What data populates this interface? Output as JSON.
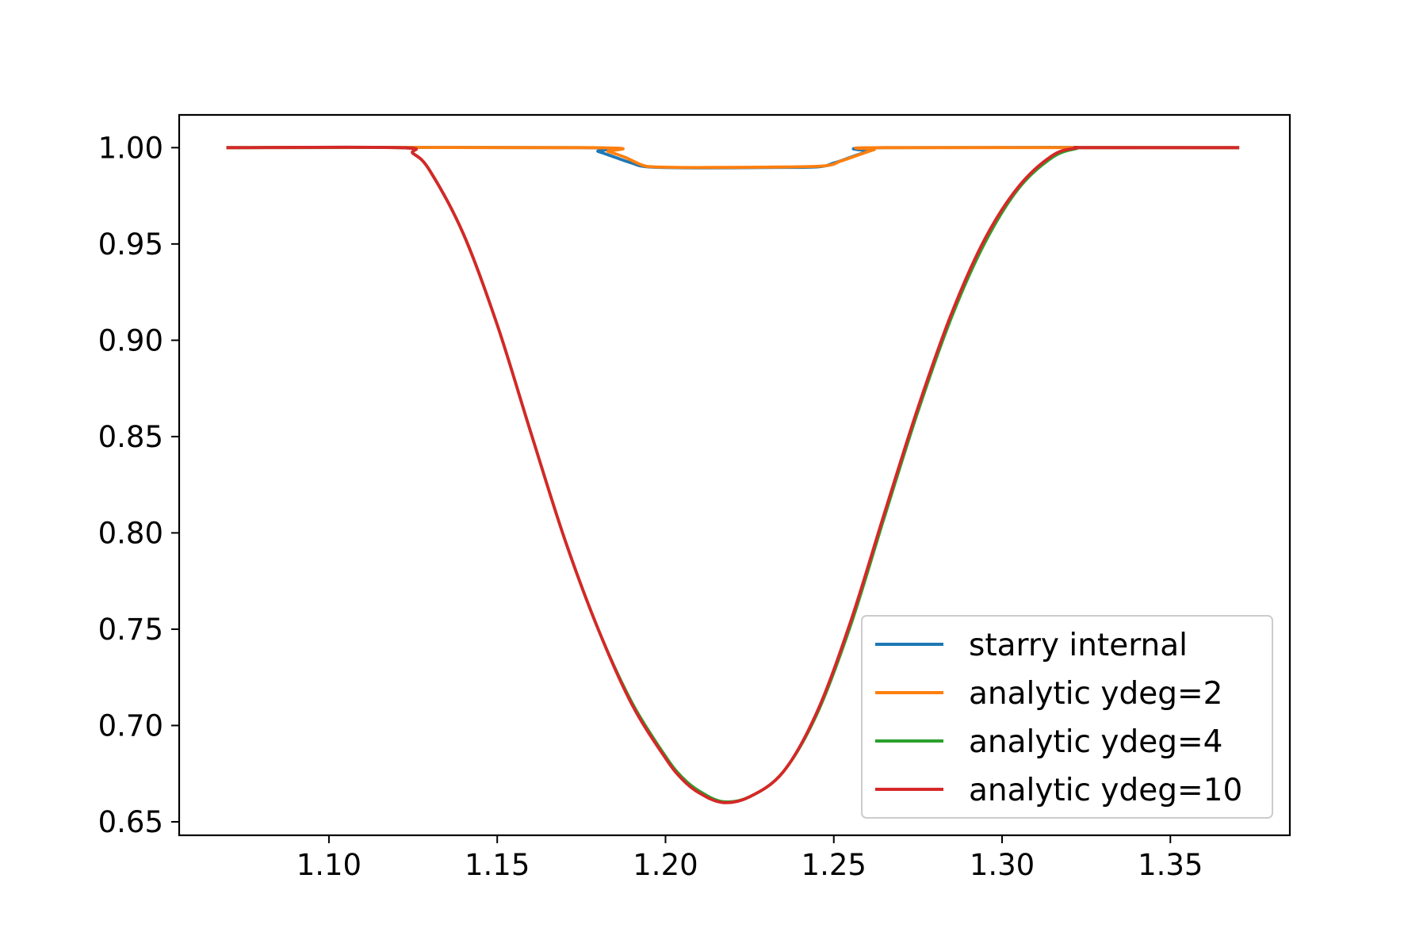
{
  "chart_data": {
    "type": "line",
    "title": "",
    "xlabel": "",
    "ylabel": "",
    "xlim": [
      1.0555,
      1.3855
    ],
    "ylim": [
      0.643,
      1.017
    ],
    "xticks": [
      1.1,
      1.15,
      1.2,
      1.25,
      1.3,
      1.35
    ],
    "xtick_labels": [
      "1.10",
      "1.15",
      "1.20",
      "1.25",
      "1.30",
      "1.35"
    ],
    "yticks": [
      0.65,
      0.7,
      0.75,
      0.8,
      0.85,
      0.9,
      0.95,
      1.0
    ],
    "ytick_labels": [
      "0.65",
      "0.70",
      "0.75",
      "0.80",
      "0.85",
      "0.90",
      "0.95",
      "1.00"
    ],
    "grid": false,
    "legend_position": "lower-right",
    "series": [
      {
        "name": "starry internal",
        "color": "#1f77b4",
        "x": [
          1.07,
          1.175,
          1.18,
          1.185,
          1.19,
          1.195,
          1.21,
          1.23,
          1.245,
          1.25,
          1.255,
          1.26,
          1.265,
          1.37
        ],
        "y": [
          1.0,
          1.0,
          0.998,
          0.995,
          0.992,
          0.99,
          0.9895,
          0.9897,
          0.99,
          0.992,
          0.995,
          0.998,
          1.0,
          1.0
        ]
      },
      {
        "name": "analytic ydeg=2",
        "color": "#ff7f0e",
        "x": [
          1.07,
          1.178,
          1.183,
          1.188,
          1.193,
          1.197,
          1.21,
          1.23,
          1.247,
          1.252,
          1.257,
          1.262,
          1.265,
          1.37
        ],
        "y": [
          1.0,
          1.0,
          0.998,
          0.995,
          0.991,
          0.99,
          0.9897,
          0.9899,
          0.9905,
          0.993,
          0.996,
          0.999,
          1.0,
          1.0
        ]
      },
      {
        "name": "analytic ydeg=4",
        "color": "#2ca02c",
        "x": [
          1.07,
          1.121,
          1.125,
          1.13,
          1.14,
          1.15,
          1.16,
          1.17,
          1.18,
          1.19,
          1.2,
          1.205,
          1.21,
          1.217,
          1.225,
          1.235,
          1.245,
          1.255,
          1.265,
          1.275,
          1.285,
          1.295,
          1.305,
          1.315,
          1.322,
          1.326,
          1.37
        ],
        "y": [
          1.0,
          1.0,
          0.997,
          0.988,
          0.955,
          0.908,
          0.852,
          0.797,
          0.75,
          0.712,
          0.684,
          0.673,
          0.666,
          0.6605,
          0.663,
          0.676,
          0.706,
          0.752,
          0.808,
          0.863,
          0.912,
          0.951,
          0.979,
          0.995,
          0.9995,
          1.0,
          1.0
        ]
      },
      {
        "name": "analytic ydeg=10",
        "color": "#d62728",
        "x": [
          1.07,
          1.121,
          1.125,
          1.13,
          1.14,
          1.15,
          1.16,
          1.17,
          1.18,
          1.19,
          1.2,
          1.205,
          1.21,
          1.217,
          1.225,
          1.235,
          1.245,
          1.255,
          1.265,
          1.275,
          1.285,
          1.295,
          1.305,
          1.315,
          1.322,
          1.326,
          1.37
        ],
        "y": [
          1.0,
          1.0,
          0.997,
          0.988,
          0.955,
          0.908,
          0.852,
          0.797,
          0.75,
          0.711,
          0.683,
          0.672,
          0.665,
          0.66,
          0.663,
          0.676,
          0.707,
          0.754,
          0.81,
          0.865,
          0.914,
          0.953,
          0.98,
          0.996,
          0.9998,
          1.0,
          1.0
        ]
      }
    ]
  }
}
